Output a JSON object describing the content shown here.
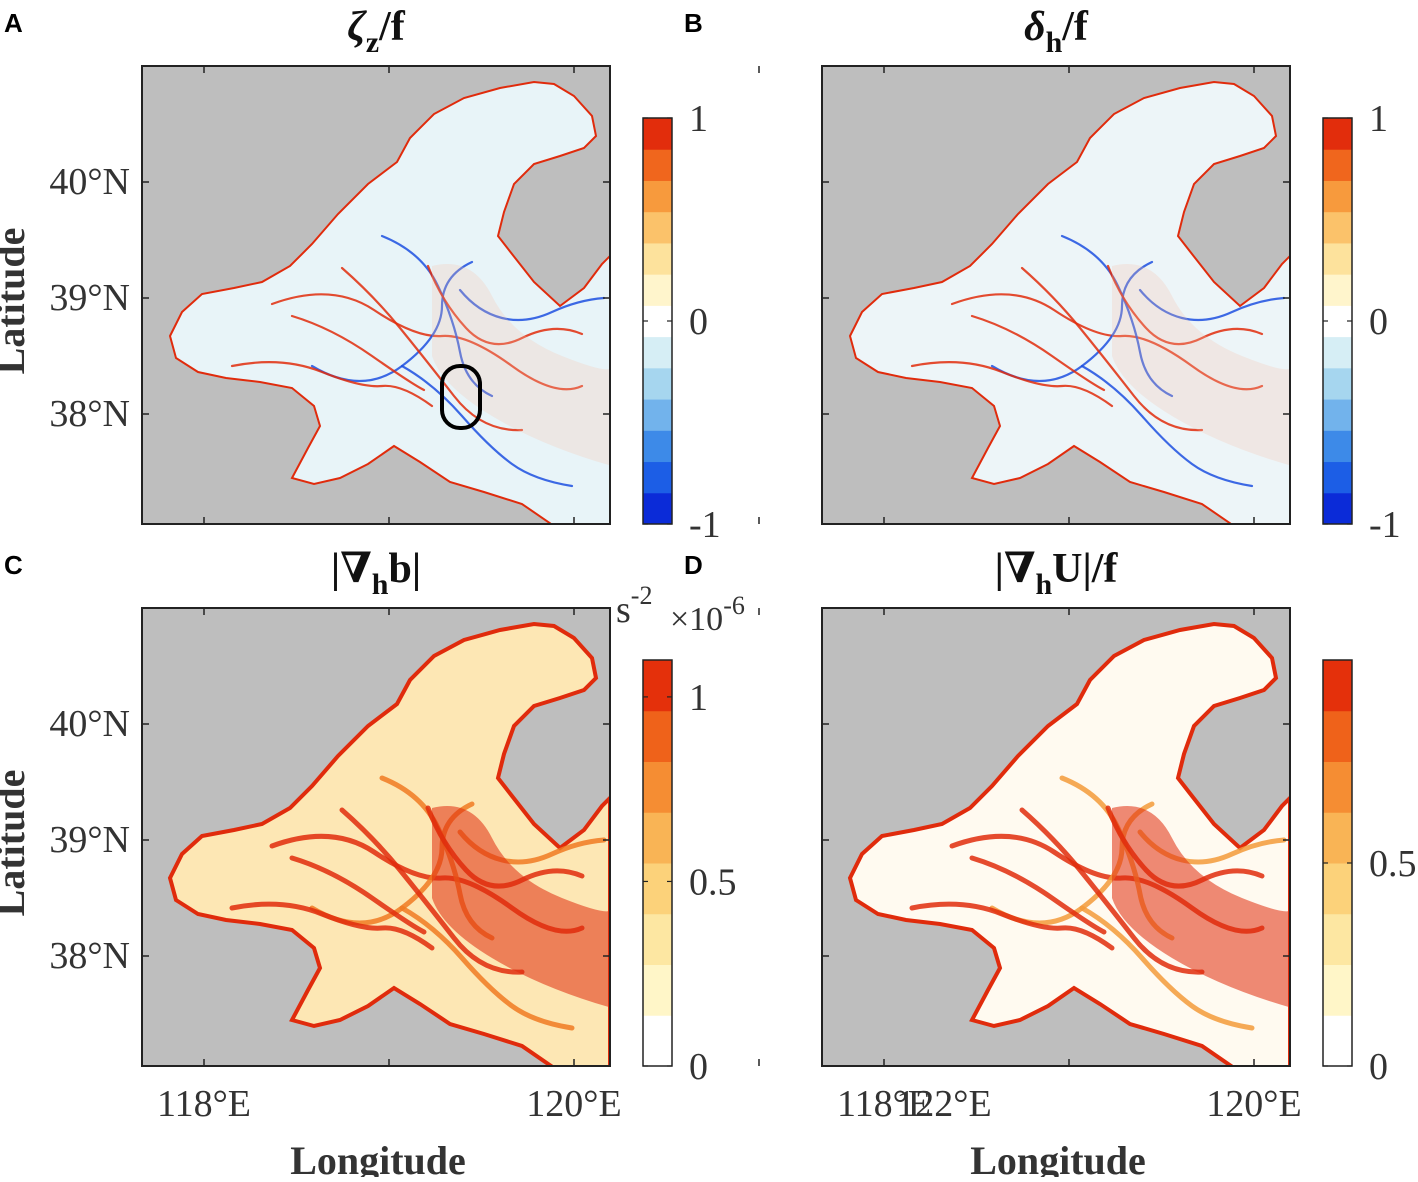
{
  "chart_data": [
    {
      "type": "heatmap",
      "panel_label": "A",
      "title_symbol": "ζ",
      "title_sub": "z",
      "title_rest": "/f",
      "xlabel": "",
      "ylabel": "Latitude",
      "x_ticks": [],
      "y_ticks": [
        "40°N",
        "39°N",
        "38°N"
      ],
      "y_tick_values": [
        40,
        39,
        38
      ],
      "colorbar": {
        "ticks": [
          "1",
          "0",
          "-1"
        ],
        "tick_values": [
          1,
          0,
          -1
        ],
        "range": [
          -1,
          1
        ],
        "unit": "",
        "exponent": "",
        "colors": [
          "#0b2bd8",
          "#1c5ee6",
          "#3d8ae8",
          "#72b3ec",
          "#a6d6ef",
          "#d6eef5",
          "#ffffff",
          "#fff5cc",
          "#fde29c",
          "#fbc26a",
          "#f79a3d",
          "#f0661d",
          "#e22d0c"
        ]
      },
      "annotation": "ellipse-marker"
    },
    {
      "type": "heatmap",
      "panel_label": "B",
      "title_symbol": "δ",
      "title_sub": "h",
      "title_rest": "/f",
      "xlabel": "",
      "ylabel": "",
      "x_ticks": [],
      "y_ticks": [],
      "colorbar": {
        "ticks": [
          "1",
          "0",
          "-1"
        ],
        "tick_values": [
          1,
          0,
          -1
        ],
        "range": [
          -1,
          1
        ],
        "unit": "",
        "exponent": "",
        "colors": [
          "#0b2bd8",
          "#1c5ee6",
          "#3d8ae8",
          "#72b3ec",
          "#a6d6ef",
          "#d6eef5",
          "#ffffff",
          "#fff5cc",
          "#fde29c",
          "#fbc26a",
          "#f79a3d",
          "#f0661d",
          "#e22d0c"
        ]
      }
    },
    {
      "type": "heatmap",
      "panel_label": "C",
      "title_symbol": "|∇",
      "title_sub": "h",
      "title_rest": "b|",
      "xlabel": "Longitude",
      "ylabel": "Latitude",
      "x_ticks": [
        "118°E",
        "120°E",
        "122°E"
      ],
      "x_tick_values": [
        118,
        120,
        122
      ],
      "y_ticks": [
        "40°N",
        "39°N",
        "38°N"
      ],
      "y_tick_values": [
        40,
        39,
        38
      ],
      "colorbar": {
        "ticks": [
          "1",
          "0.5",
          "0"
        ],
        "tick_values": [
          1,
          0.5,
          0
        ],
        "range": [
          0,
          1.1
        ],
        "unit_base": "s",
        "unit_exp": "-2",
        "mult": "×10",
        "exponent": "-6",
        "colors": [
          "#ffffff",
          "#fff6c8",
          "#fde7a2",
          "#fcd27a",
          "#f9b455",
          "#f58d33",
          "#ef621a",
          "#e4300b"
        ]
      }
    },
    {
      "type": "heatmap",
      "panel_label": "D",
      "title_symbol": "|∇",
      "title_sub": "h",
      "title_rest": "U|/f",
      "xlabel": "Longitude",
      "ylabel": "",
      "x_ticks": [
        "118°E",
        "120°E",
        "122°E"
      ],
      "x_tick_values": [
        118,
        120,
        122
      ],
      "y_ticks": [],
      "colorbar": {
        "ticks": [
          "0.5",
          "0"
        ],
        "tick_values": [
          0.5,
          0
        ],
        "range": [
          0,
          1
        ],
        "unit": "",
        "exponent": "",
        "colors": [
          "#ffffff",
          "#fff6c8",
          "#fde7a2",
          "#fcd27a",
          "#f9b455",
          "#f58d33",
          "#ef621a",
          "#e4300b"
        ]
      }
    }
  ],
  "colors": {
    "land": "#bebebe",
    "frame": "#222222",
    "red": "#e02b0c",
    "blue": "#1c4fe0"
  }
}
